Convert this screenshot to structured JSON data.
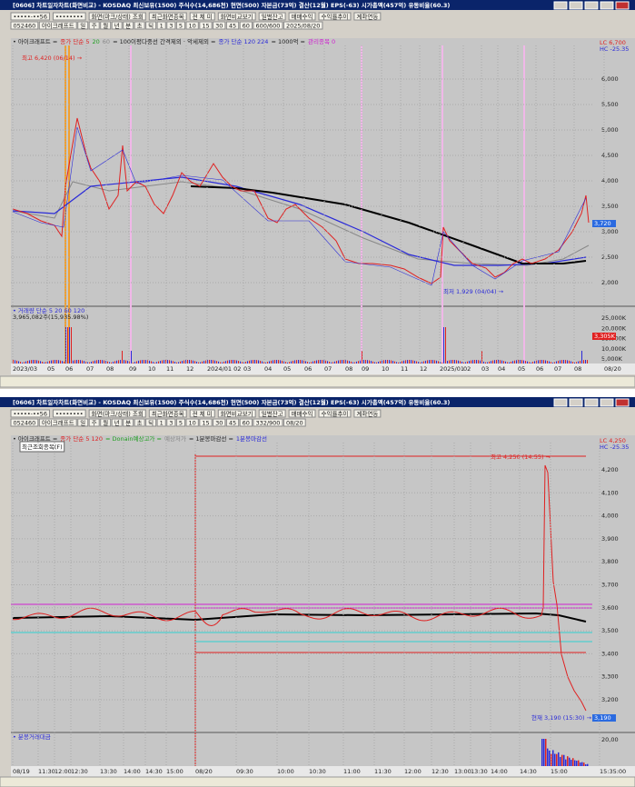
{
  "windows": [
    {
      "title": "[0606] 차트일자차트(화면비교) - KOSDAQ 최신보유(1500) 주식수(14,686천) 현면(500) 자본금(73억) 결산(12월) EPS(-63) 시가총액(457억) 유동비율(60.3)",
      "toolbar_row1": [
        "•••••-••56",
        "••••••••",
        "화면(마크/상태) 조회",
        "최근화면종목",
        "전 체 미",
        "화면비교보기",
        "일별잔고",
        "매매수익",
        "수익률추이",
        "계좌연동"
      ],
      "toolbar_row2": [
        "052460",
        "아이크래프트",
        "일",
        "주",
        "월",
        "년",
        "분",
        "초",
        "틱",
        "1",
        "3",
        "5",
        "10",
        "15",
        "30",
        "45",
        "60",
        "600/600",
        "2025/08/20"
      ],
      "legend": [
        "• 아이크래프트 =",
        "종가 단순 5",
        "20",
        "60",
        "= 100이평다중선 간격제외 · 악세제외 =",
        "종가 단순 120 224",
        "= 1000억 =",
        "관리종목 0"
      ],
      "annotations": [
        "최고 6,420 (06/14) →",
        "최저 1,929 (04/04) →",
        "LC 6,700",
        "HC -25.35"
      ],
      "badges": [
        "3,720",
        "3,305K"
      ],
      "price_axis": [
        "6,000",
        "5,500",
        "5,000",
        "4,500",
        "4,000",
        "3,500",
        "3,000",
        "2,500",
        "2,000"
      ],
      "volume_legend": [
        "• 거래량 단순 5 20 60 120",
        "3,965,082주(15,935.98%)"
      ],
      "volume_axis": [
        "25,000K",
        "20,000K",
        "15,000K",
        "10,000K",
        "5,000K"
      ],
      "time_axis": [
        "2023/03",
        "05",
        "06",
        "07",
        "08",
        "09",
        "10",
        "11",
        "12",
        "2024/01 02",
        "03",
        "04",
        "05",
        "06",
        "07",
        "08",
        "09",
        "10",
        "11",
        "12",
        "2025/01",
        "02",
        "03",
        "04",
        "05",
        "06",
        "07",
        "08",
        "08/20"
      ]
    },
    {
      "title": "[0606] 차트일자차트(화면비교) - KOSDAQ 최신보유(1500) 주식수(14,686천) 현면(500) 자본금(73억) 결산(12월) EPS(-63) 시가총액(457억) 유동비율(60.3)",
      "toolbar_row1": [
        "•••••-••56",
        "••••••••",
        "화면(마크/상태) 조회",
        "최근화면종목",
        "전 체 미",
        "화면비교보기",
        "일별잔고",
        "매매수익",
        "수익률추이",
        "계좌연동"
      ],
      "toolbar_row2": [
        "052460",
        "아이크래프트",
        "일",
        "주",
        "월",
        "년",
        "분",
        "초",
        "틱",
        "1",
        "3",
        "5",
        "10",
        "15",
        "30",
        "45",
        "60",
        "332/900",
        "08/20"
      ],
      "legend": [
        "• 아이크래프트 =",
        "종가 단순 5 120",
        "= Donain예상고가 =",
        "예상저가",
        "= 1분봉마감선 =",
        "1분봉마감선"
      ],
      "annotations": [
        "최고 4,250 (14:55) →",
        "현재 3,190 (15:30) →",
        "LC 4,250",
        "HC -25.35",
        "최근조회종목(F)"
      ],
      "badges": [
        "3,190"
      ],
      "price_axis": [
        "4,200",
        "4,100",
        "4,000",
        "3,900",
        "3,800",
        "3,700",
        "3,600",
        "3,500",
        "3,400",
        "3,300",
        "3,200"
      ],
      "volume_legend": [
        "• 분봉거래대금"
      ],
      "volume_axis": [
        "20,00"
      ],
      "time_axis": [
        "08/19",
        "11:30",
        "12:00",
        "12:30",
        "13:30",
        "14:00",
        "14:30",
        "15:00",
        "08/20",
        "09:30",
        "10:00",
        "10:30",
        "11:00",
        "11:30",
        "12:00",
        "12:30",
        "13:00",
        "13:30",
        "14:00",
        "14:30",
        "15:00",
        "15:35:00"
      ]
    }
  ]
}
